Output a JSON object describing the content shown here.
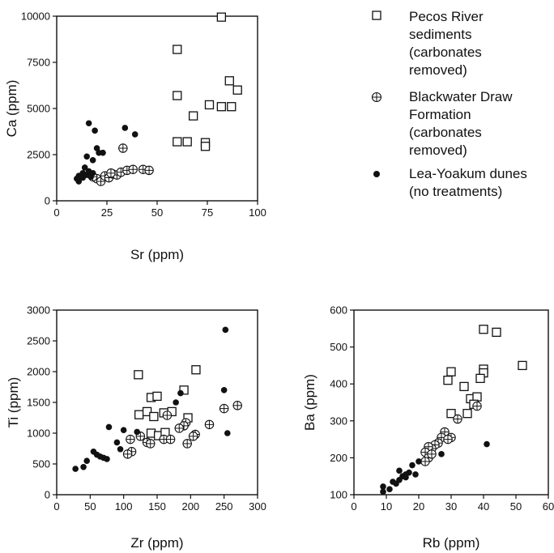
{
  "legend": [
    {
      "marker": "square",
      "lines": [
        "Pecos River",
        "sediments",
        "(carbonates",
        "removed)"
      ]
    },
    {
      "marker": "circle-plus",
      "lines": [
        "Blackwater Draw",
        "Formation",
        "(carbonates",
        "removed)"
      ]
    },
    {
      "marker": "dot",
      "lines": [
        "Lea-Yoakum dunes",
        "(no treatments)"
      ]
    }
  ],
  "chart_data": [
    {
      "type": "scatter",
      "xlabel": "Sr (ppm)",
      "ylabel": "Ca (ppm)",
      "xlim": [
        0,
        100
      ],
      "ylim": [
        0,
        10000
      ],
      "xticks": [
        0,
        25,
        50,
        75,
        100
      ],
      "yticks": [
        0,
        2500,
        5000,
        7500,
        10000
      ],
      "series": [
        {
          "marker": "square",
          "points": [
            [
              60,
              8200
            ],
            [
              60,
              5700
            ],
            [
              82,
              9950
            ],
            [
              86,
              6500
            ],
            [
              90,
              6000
            ],
            [
              76,
              5200
            ],
            [
              82,
              5100
            ],
            [
              87,
              5100
            ],
            [
              68,
              4600
            ],
            [
              60,
              3200
            ],
            [
              65,
              3200
            ],
            [
              74,
              3150
            ],
            [
              74,
              2950
            ]
          ]
        },
        {
          "marker": "circle-plus",
          "points": [
            [
              33,
              2850
            ],
            [
              20,
              1200
            ],
            [
              22,
              1050
            ],
            [
              24,
              1350
            ],
            [
              26,
              1250
            ],
            [
              28,
              1450
            ],
            [
              30,
              1400
            ],
            [
              32,
              1550
            ],
            [
              35,
              1650
            ],
            [
              38,
              1700
            ],
            [
              43,
              1700
            ],
            [
              46,
              1650
            ],
            [
              18,
              1300
            ],
            [
              27,
              1500
            ]
          ]
        },
        {
          "marker": "dot",
          "points": [
            [
              16,
              4200
            ],
            [
              19,
              3800
            ],
            [
              20,
              2850
            ],
            [
              21,
              2600
            ],
            [
              23,
              2600
            ],
            [
              34,
              3950
            ],
            [
              39,
              3600
            ],
            [
              15,
              2400
            ],
            [
              18,
              2200
            ],
            [
              10,
              1200
            ],
            [
              11,
              1050
            ],
            [
              12,
              1300
            ],
            [
              13,
              1500
            ],
            [
              14,
              1800
            ],
            [
              15,
              1400
            ],
            [
              16,
              1600
            ],
            [
              17,
              1300
            ],
            [
              18,
              1500
            ],
            [
              11,
              1350
            ],
            [
              13,
              1250
            ]
          ]
        }
      ]
    },
    {
      "type": "scatter",
      "xlabel": "Zr (ppm)",
      "ylabel": "Ti (ppm)",
      "xlim": [
        0,
        300
      ],
      "ylim": [
        0,
        3000
      ],
      "xticks": [
        0,
        50,
        100,
        150,
        200,
        250,
        300
      ],
      "yticks": [
        0,
        500,
        1000,
        1500,
        2000,
        2500,
        3000
      ],
      "series": [
        {
          "marker": "square",
          "points": [
            [
              122,
              1950
            ],
            [
              208,
              2030
            ],
            [
              190,
              1700
            ],
            [
              141,
              1580
            ],
            [
              150,
              1600
            ],
            [
              123,
              1300
            ],
            [
              135,
              1350
            ],
            [
              160,
              1330
            ],
            [
              172,
              1350
            ],
            [
              196,
              1250
            ],
            [
              145,
              1270
            ],
            [
              141,
              1000
            ],
            [
              152,
              960
            ],
            [
              162,
              1010
            ]
          ]
        },
        {
          "marker": "circle-plus",
          "points": [
            [
              270,
              1450
            ],
            [
              250,
              1400
            ],
            [
              228,
              1140
            ],
            [
              207,
              980
            ],
            [
              204,
              950
            ],
            [
              193,
              1170
            ],
            [
              190,
              1120
            ],
            [
              183,
              1080
            ],
            [
              165,
              1290
            ],
            [
              160,
              900
            ],
            [
              170,
              900
            ],
            [
              195,
              830
            ],
            [
              135,
              850
            ],
            [
              140,
              830
            ],
            [
              110,
              900
            ],
            [
              112,
              700
            ],
            [
              106,
              660
            ],
            [
              125,
              950
            ]
          ]
        },
        {
          "marker": "dot",
          "points": [
            [
              252,
              2680
            ],
            [
              250,
              1700
            ],
            [
              255,
              1000
            ],
            [
              185,
              1650
            ],
            [
              178,
              1500
            ],
            [
              78,
              1100
            ],
            [
              100,
              1050
            ],
            [
              120,
              1020
            ],
            [
              90,
              850
            ],
            [
              95,
              740
            ],
            [
              55,
              700
            ],
            [
              60,
              650
            ],
            [
              65,
              620
            ],
            [
              70,
              600
            ],
            [
              75,
              580
            ],
            [
              45,
              550
            ],
            [
              40,
              450
            ],
            [
              28,
              420
            ]
          ]
        }
      ]
    },
    {
      "type": "scatter",
      "xlabel": "Rb (ppm)",
      "ylabel": "Ba (ppm)",
      "xlim": [
        0,
        60
      ],
      "ylim": [
        100,
        600
      ],
      "xticks": [
        0,
        10,
        20,
        30,
        40,
        50,
        60
      ],
      "yticks": [
        100,
        200,
        300,
        400,
        500,
        600
      ],
      "series": [
        {
          "marker": "square",
          "points": [
            [
              40,
              548
            ],
            [
              44,
              540
            ],
            [
              52,
              450
            ],
            [
              40,
              440
            ],
            [
              40,
              430
            ],
            [
              30,
              433
            ],
            [
              29,
              410
            ],
            [
              34,
              393
            ],
            [
              36,
              360
            ],
            [
              39,
              415
            ],
            [
              38,
              365
            ],
            [
              37,
              345
            ],
            [
              35,
              320
            ],
            [
              30,
              320
            ]
          ]
        },
        {
          "marker": "circle-plus",
          "points": [
            [
              38,
              340
            ],
            [
              32,
              305
            ],
            [
              30,
              255
            ],
            [
              28,
              270
            ],
            [
              27,
              255
            ],
            [
              26,
              240
            ],
            [
              25,
              235
            ],
            [
              24,
              225
            ],
            [
              23,
              230
            ],
            [
              22,
              215
            ],
            [
              23,
              200
            ],
            [
              24,
              210
            ],
            [
              22,
              190
            ],
            [
              29,
              250
            ]
          ]
        },
        {
          "marker": "dot",
          "points": [
            [
              41,
              237
            ],
            [
              27,
              210
            ],
            [
              20,
              190
            ],
            [
              18,
              180
            ],
            [
              17,
              160
            ],
            [
              16,
              155
            ],
            [
              15,
              150
            ],
            [
              14,
              140
            ],
            [
              14,
              165
            ],
            [
              13,
              130
            ],
            [
              12,
              135
            ],
            [
              11,
              115
            ],
            [
              9,
              122
            ],
            [
              9,
              108
            ],
            [
              16,
              147
            ],
            [
              19,
              155
            ]
          ]
        }
      ]
    }
  ]
}
